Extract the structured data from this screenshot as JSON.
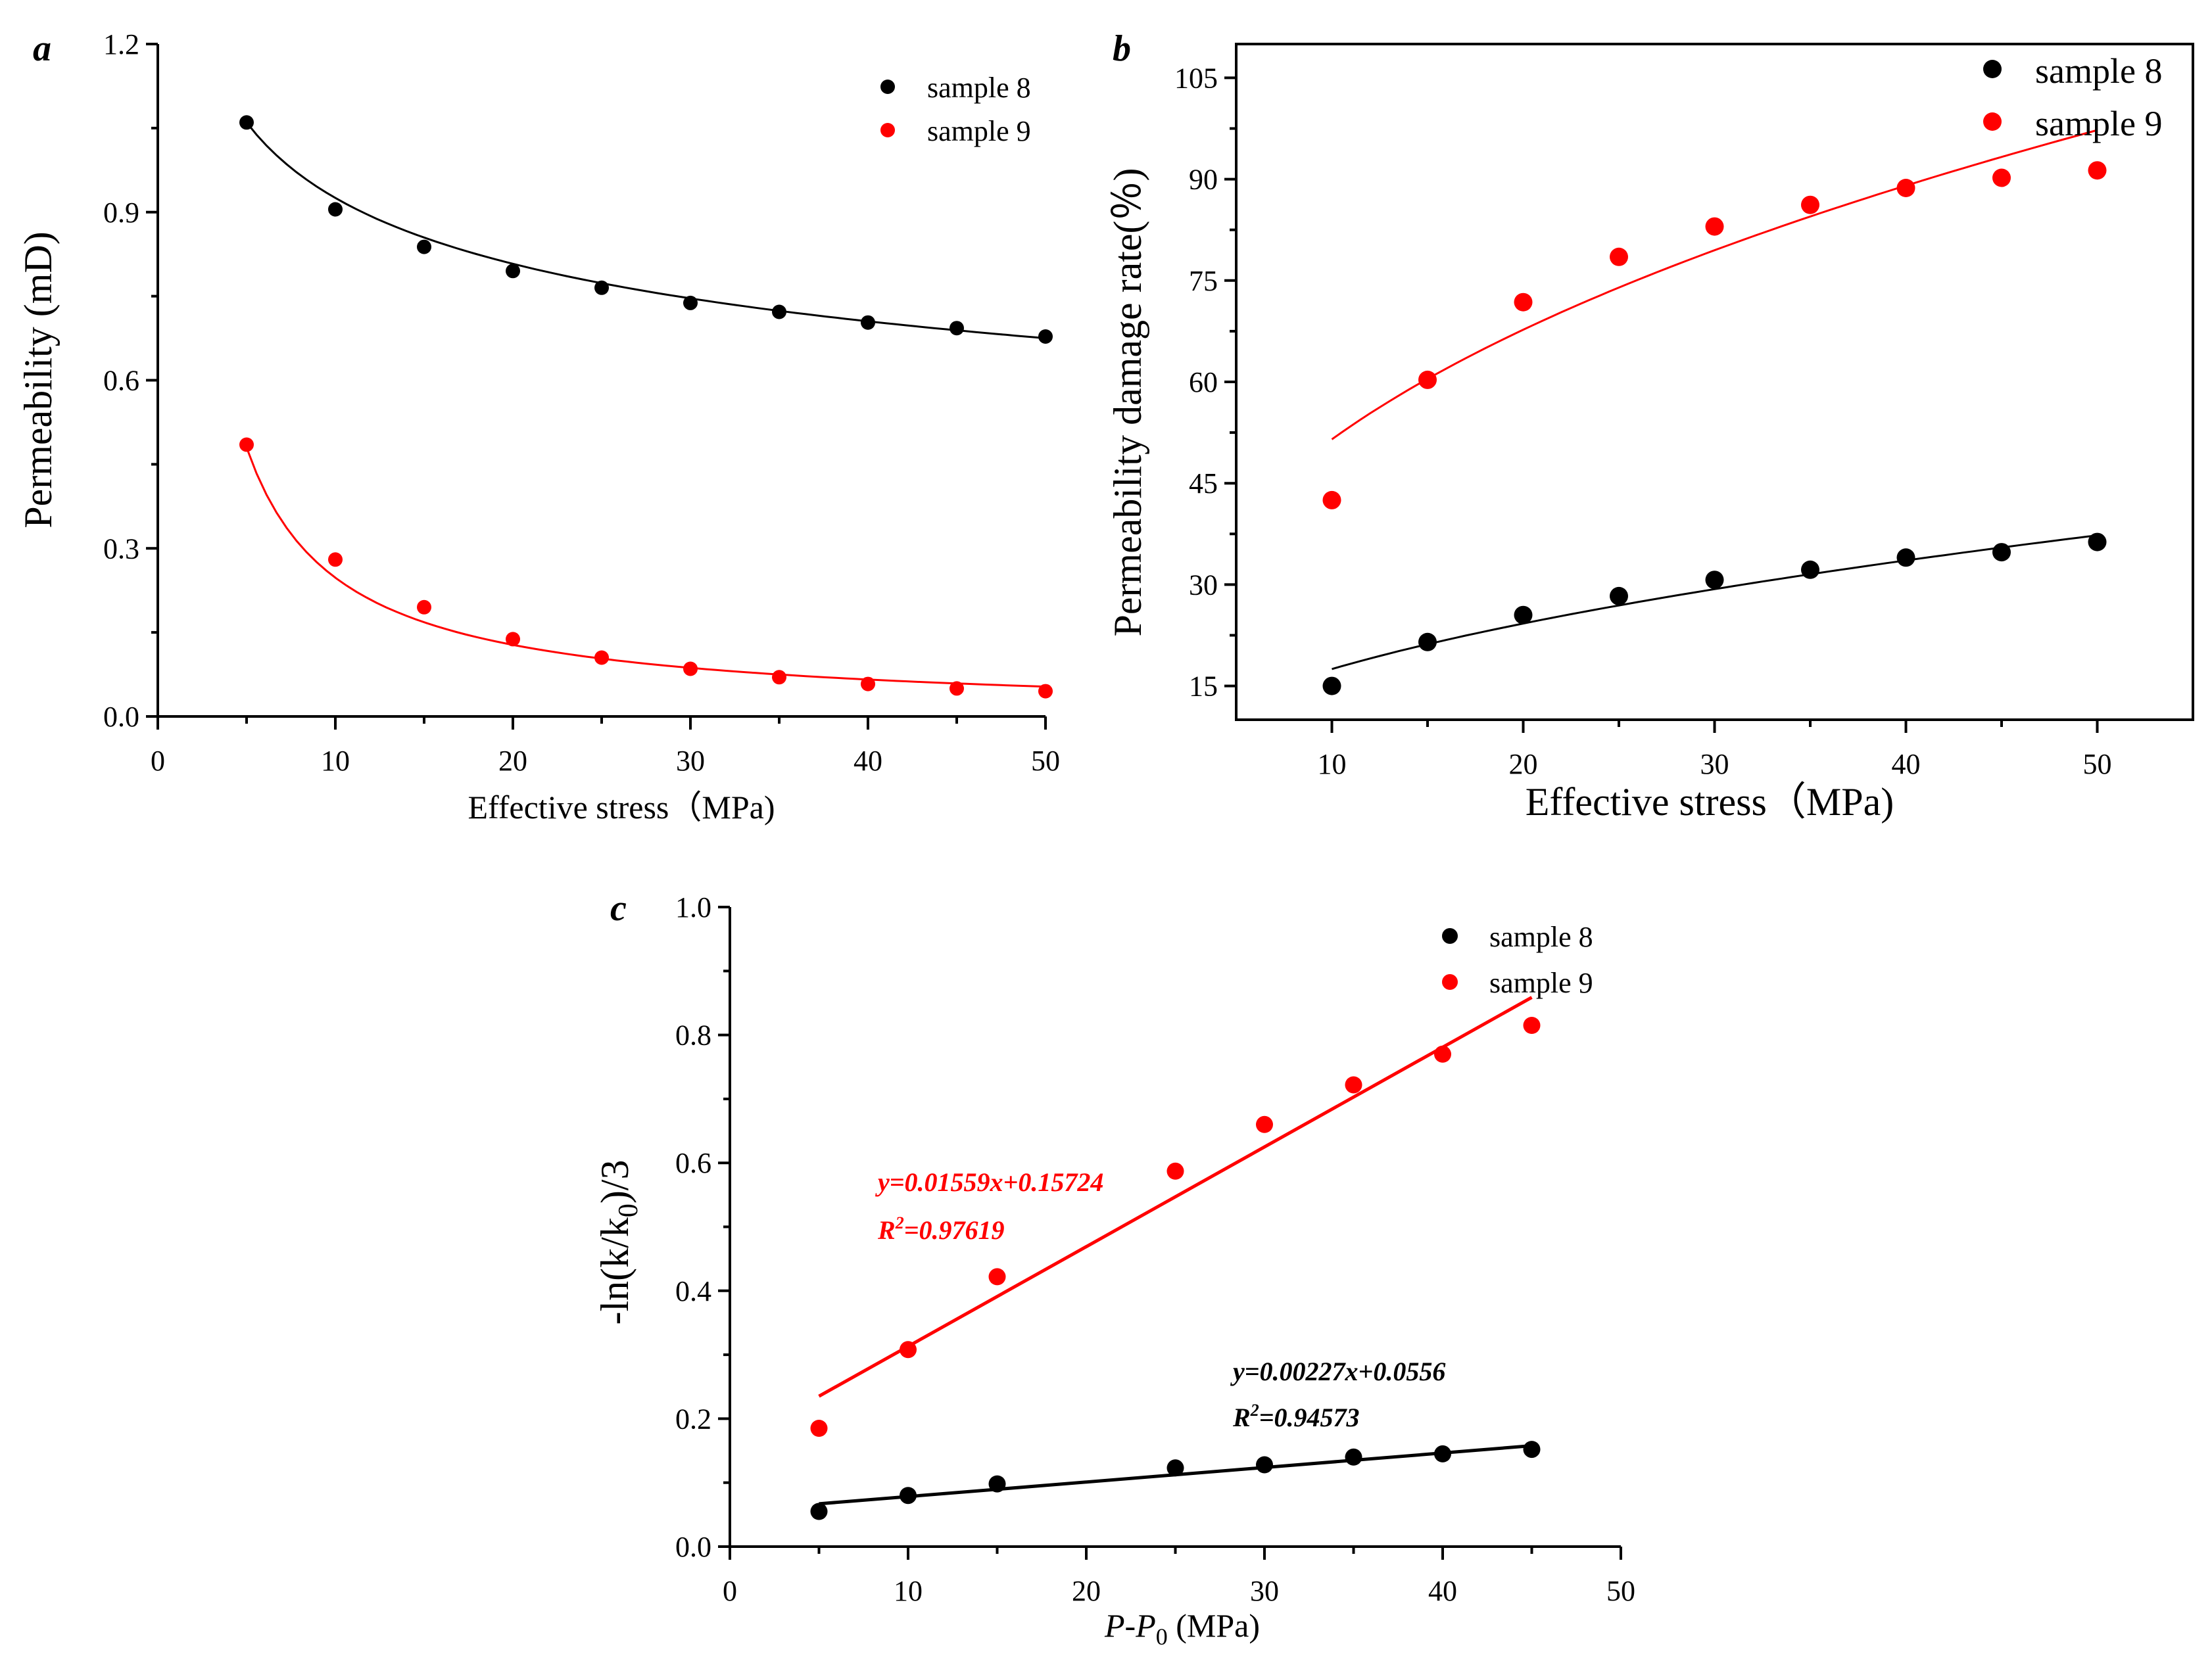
{
  "chart_data": [
    {
      "id": "a",
      "type": "scatter",
      "panel_label": "a",
      "title": "",
      "xlabel": "Effective stress（MPa)",
      "ylabel": "Permeability (mD)",
      "xlim": [
        0,
        50
      ],
      "ylim": [
        0,
        1.2
      ],
      "xticks": [
        0,
        10,
        20,
        30,
        40,
        50
      ],
      "xtick_labels": [
        "0",
        "10",
        "20",
        "30",
        "40",
        "50"
      ],
      "yticks": [
        0,
        0.3,
        0.6,
        0.9,
        1.2
      ],
      "ytick_labels": [
        "0.0",
        "0.3",
        "0.6",
        "0.9",
        "1.2"
      ],
      "grid": false,
      "legend_position": "top-right",
      "series": [
        {
          "name": "sample 8",
          "color": "#000000",
          "x": [
            5,
            10,
            15,
            20,
            25,
            30,
            35,
            40,
            45,
            50
          ],
          "y": [
            1.06,
            0.905,
            0.838,
            0.795,
            0.765,
            0.738,
            0.722,
            0.703,
            0.693,
            0.678
          ],
          "fit": {
            "model": "power",
            "a": 1.06,
            "x0": 5,
            "b": -0.196
          }
        },
        {
          "name": "sample 9",
          "color": "#ff0000",
          "x": [
            5,
            10,
            15,
            20,
            25,
            30,
            35,
            40,
            45,
            50
          ],
          "y": [
            0.485,
            0.28,
            0.195,
            0.138,
            0.105,
            0.085,
            0.07,
            0.058,
            0.05,
            0.045
          ],
          "fit": {
            "model": "power",
            "a": 0.48,
            "x0": 5,
            "b": -0.955
          }
        }
      ]
    },
    {
      "id": "b",
      "type": "scatter",
      "panel_label": "b",
      "title": "",
      "xlabel": "Effective stress（MPa)",
      "ylabel": "Permeability damage rate(％)",
      "xlim": [
        5,
        55
      ],
      "ylim": [
        10,
        110
      ],
      "xticks": [
        10,
        20,
        30,
        40,
        50
      ],
      "xtick_labels": [
        "10",
        "20",
        "30",
        "40",
        "50"
      ],
      "yticks": [
        15,
        30,
        45,
        60,
        75,
        90,
        105
      ],
      "ytick_labels": [
        "15",
        "30",
        "45",
        "60",
        "75",
        "90",
        "105"
      ],
      "grid": false,
      "legend_position": "top-right",
      "series": [
        {
          "name": "sample 8",
          "color": "#000000",
          "x": [
            10,
            15,
            20,
            25,
            30,
            35,
            40,
            45,
            50
          ],
          "y": [
            15,
            21.5,
            25.5,
            28.3,
            30.7,
            32.2,
            34,
            34.8,
            36.3
          ],
          "fit": {
            "model": "power",
            "a": 17.5,
            "x0": 10,
            "b": 0.47
          }
        },
        {
          "name": "sample 9",
          "color": "#ff0000",
          "x": [
            10,
            15,
            20,
            25,
            30,
            35,
            40,
            45,
            50
          ],
          "y": [
            42.5,
            60.3,
            71.8,
            78.5,
            83,
            86.2,
            88.7,
            90.2,
            91.3
          ],
          "fit": {
            "model": "power",
            "a": 51.5,
            "x0": 10,
            "b": 0.395
          }
        }
      ]
    },
    {
      "id": "c",
      "type": "scatter",
      "panel_label": "c",
      "title": "",
      "xlabel": "P-P₀ (MPa)",
      "xlabel_parts": {
        "main": "P-P",
        "sub": "0",
        "unit": " (MPa)"
      },
      "ylabel": "-ln(k/k₀)/3",
      "ylabel_parts": {
        "pre": "-ln(k/k",
        "sub": "0",
        "post": ")/3"
      },
      "xlim": [
        0,
        50
      ],
      "ylim": [
        0,
        1.0
      ],
      "xticks": [
        0,
        10,
        20,
        30,
        40,
        50
      ],
      "xtick_labels": [
        "0",
        "10",
        "20",
        "30",
        "40",
        "50"
      ],
      "yticks": [
        0,
        0.2,
        0.4,
        0.6,
        0.8,
        1.0
      ],
      "ytick_labels": [
        "0.0",
        "0.2",
        "0.4",
        "0.6",
        "0.8",
        "1.0"
      ],
      "grid": false,
      "legend_position": "top-right",
      "series": [
        {
          "name": "sample 8",
          "color": "#000000",
          "x": [
            5,
            10,
            15,
            25,
            30,
            35,
            40,
            45
          ],
          "y": [
            0.055,
            0.08,
            0.098,
            0.123,
            0.128,
            0.14,
            0.145,
            0.152
          ],
          "fit": {
            "model": "linear",
            "slope": 0.00227,
            "intercept": 0.0556,
            "x_range": [
              5,
              45
            ]
          },
          "equation": "y=0.00227x+0.0556",
          "r2_prefix": "R",
          "r2_exp": "2",
          "r2_value": "=0.94573"
        },
        {
          "name": "sample 9",
          "color": "#ff0000",
          "x": [
            5,
            10,
            15,
            25,
            30,
            35,
            40,
            45
          ],
          "y": [
            0.185,
            0.308,
            0.422,
            0.587,
            0.66,
            0.722,
            0.77,
            0.815
          ],
          "fit": {
            "model": "linear",
            "slope": 0.01559,
            "intercept": 0.15724,
            "x_range": [
              5,
              45
            ]
          },
          "equation": "y=0.01559x+0.15724",
          "r2_prefix": "R",
          "r2_exp": "2",
          "r2_value": "=0.97619"
        }
      ]
    }
  ]
}
